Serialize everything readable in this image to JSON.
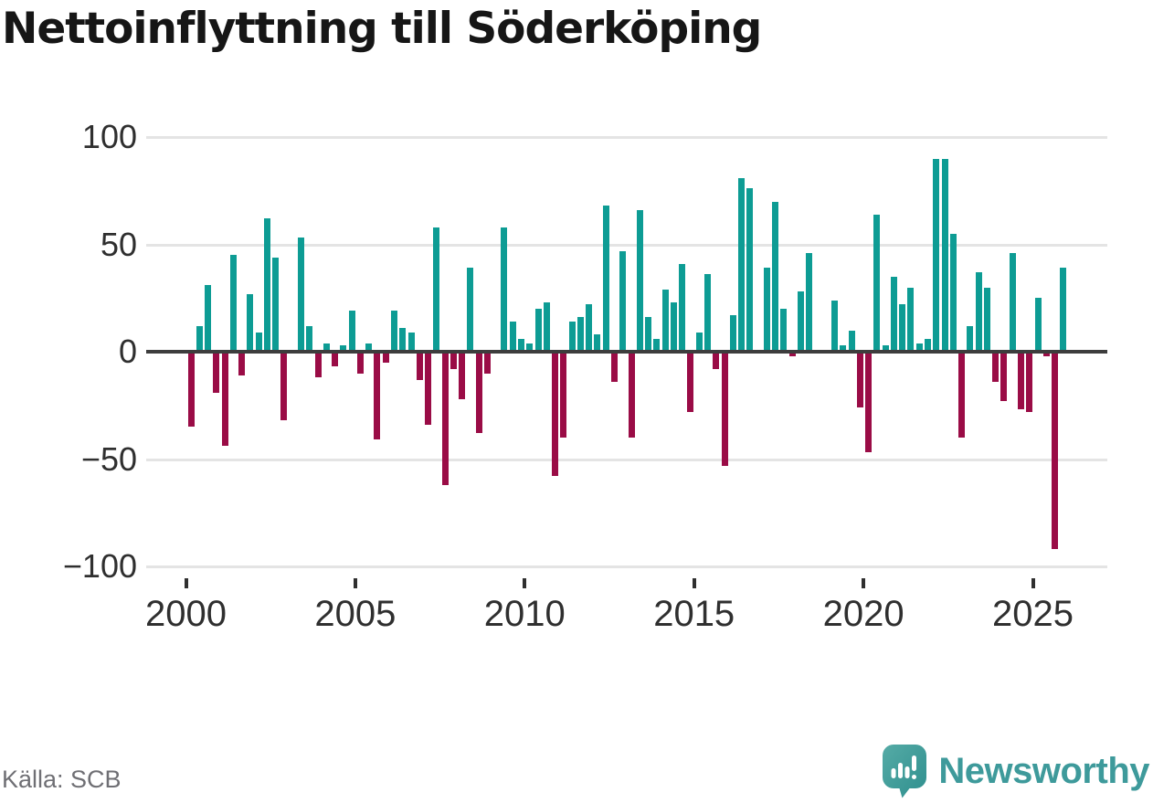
{
  "title": "Nettoinflyttning till Söderköping",
  "source": "Källa: SCB",
  "branding": {
    "name": "Newsworthy",
    "icon": "newsworthy-speech-bubble-chart-icon",
    "text_color": "#3e9a9b",
    "icon_color_top": "#55aba6",
    "icon_color_bottom": "#2f8f8e"
  },
  "colors": {
    "positive_bar": "#0d9c94",
    "negative_bar": "#9a0c46",
    "gridline": "#e4e4e4",
    "zero_line": "#3d3d3d",
    "axis_text": "#2f2f2f",
    "source_text": "#6f6f74",
    "title_text": "#161616",
    "background": "#ffffff"
  },
  "chart_data": {
    "type": "bar",
    "title": "Nettoinflyttning till Söderköping",
    "frequency": "quarterly",
    "start_year": 2000,
    "end_year": 2025,
    "ylim": [
      -100,
      100
    ],
    "y_ticks": [
      100,
      50,
      0,
      -50,
      -100
    ],
    "x_ticks": [
      2000,
      2005,
      2010,
      2015,
      2020,
      2025
    ],
    "grid": "horizontal",
    "legend": "none",
    "values": [
      -35,
      12,
      31,
      -19,
      -44,
      45,
      -11,
      27,
      9,
      62,
      44,
      -32,
      0,
      53,
      12,
      -12,
      4,
      -7,
      3,
      19,
      -10,
      4,
      -41,
      -5,
      19,
      11,
      9,
      -13,
      -34,
      58,
      -62,
      -8,
      -22,
      39,
      -38,
      -10,
      0,
      58,
      14,
      6,
      4,
      20,
      23,
      -58,
      -40,
      14,
      16,
      22,
      8,
      68,
      -14,
      47,
      -40,
      66,
      16,
      6,
      29,
      23,
      41,
      -28,
      9,
      36,
      -8,
      -53,
      17,
      81,
      76,
      0,
      39,
      70,
      20,
      -2,
      28,
      46,
      0,
      0,
      24,
      3,
      10,
      -26,
      -47,
      64,
      3,
      35,
      22,
      30,
      4,
      6,
      90,
      90,
      55,
      -40,
      12,
      37,
      30,
      -14,
      -23,
      46,
      -27,
      -28,
      25,
      -2,
      -92,
      39
    ]
  }
}
